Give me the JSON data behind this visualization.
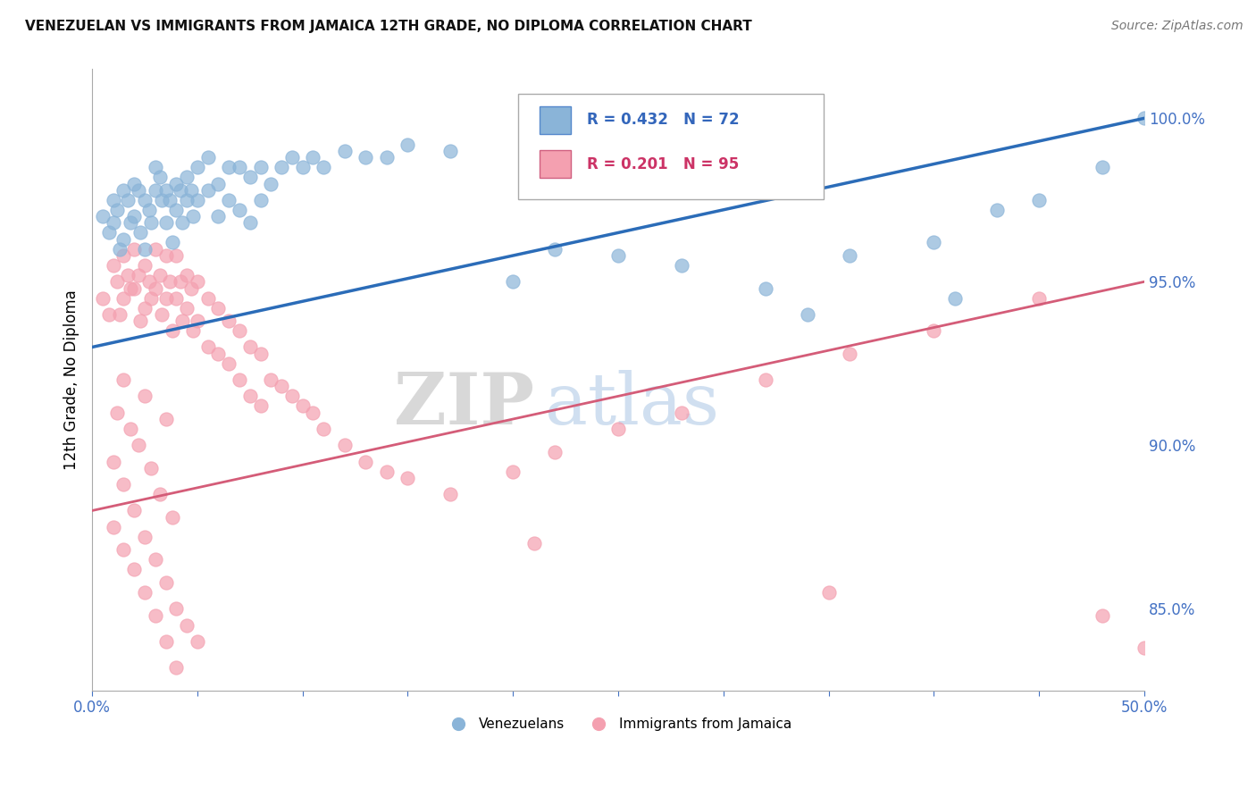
{
  "title": "VENEZUELAN VS IMMIGRANTS FROM JAMAICA 12TH GRADE, NO DIPLOMA CORRELATION CHART",
  "source": "Source: ZipAtlas.com",
  "ylabel": "12th Grade, No Diploma",
  "right_yticks": [
    0.85,
    0.9,
    0.95,
    1.0
  ],
  "right_yticklabels": [
    "85.0%",
    "90.0%",
    "95.0%",
    "100.0%"
  ],
  "xlim": [
    0.0,
    0.5
  ],
  "ylim": [
    0.825,
    1.015
  ],
  "venezuelan_color": "#8ab4d8",
  "jamaica_color": "#f4a0b0",
  "venezuelan_line_color": "#2b6cb8",
  "jamaica_line_color": "#d45c78",
  "R_venezuelan": 0.432,
  "N_venezuelan": 72,
  "R_jamaica": 0.201,
  "N_jamaica": 95,
  "watermark_zip": "ZIP",
  "watermark_atlas": "atlas",
  "background_color": "#ffffff",
  "grid_color": "#cccccc",
  "venezuelan_scatter": {
    "x": [
      0.005,
      0.008,
      0.01,
      0.01,
      0.012,
      0.013,
      0.015,
      0.015,
      0.017,
      0.018,
      0.02,
      0.02,
      0.022,
      0.023,
      0.025,
      0.025,
      0.027,
      0.028,
      0.03,
      0.03,
      0.032,
      0.033,
      0.035,
      0.035,
      0.037,
      0.038,
      0.04,
      0.04,
      0.042,
      0.043,
      0.045,
      0.045,
      0.047,
      0.048,
      0.05,
      0.05,
      0.055,
      0.055,
      0.06,
      0.06,
      0.065,
      0.065,
      0.07,
      0.07,
      0.075,
      0.075,
      0.08,
      0.08,
      0.085,
      0.09,
      0.095,
      0.1,
      0.105,
      0.11,
      0.12,
      0.13,
      0.14,
      0.15,
      0.17,
      0.2,
      0.22,
      0.25,
      0.28,
      0.32,
      0.36,
      0.4,
      0.43,
      0.45,
      0.48,
      0.5,
      0.34,
      0.41
    ],
    "y": [
      0.97,
      0.965,
      0.975,
      0.968,
      0.972,
      0.96,
      0.978,
      0.963,
      0.975,
      0.968,
      0.98,
      0.97,
      0.978,
      0.965,
      0.975,
      0.96,
      0.972,
      0.968,
      0.985,
      0.978,
      0.982,
      0.975,
      0.978,
      0.968,
      0.975,
      0.962,
      0.98,
      0.972,
      0.978,
      0.968,
      0.982,
      0.975,
      0.978,
      0.97,
      0.985,
      0.975,
      0.988,
      0.978,
      0.98,
      0.97,
      0.985,
      0.975,
      0.985,
      0.972,
      0.982,
      0.968,
      0.985,
      0.975,
      0.98,
      0.985,
      0.988,
      0.985,
      0.988,
      0.985,
      0.99,
      0.988,
      0.988,
      0.992,
      0.99,
      0.95,
      0.96,
      0.958,
      0.955,
      0.948,
      0.958,
      0.962,
      0.972,
      0.975,
      0.985,
      1.0,
      0.94,
      0.945
    ]
  },
  "jamaica_scatter": {
    "x": [
      0.005,
      0.008,
      0.01,
      0.012,
      0.013,
      0.015,
      0.015,
      0.017,
      0.018,
      0.02,
      0.02,
      0.022,
      0.023,
      0.025,
      0.025,
      0.027,
      0.028,
      0.03,
      0.03,
      0.032,
      0.033,
      0.035,
      0.035,
      0.037,
      0.038,
      0.04,
      0.04,
      0.042,
      0.043,
      0.045,
      0.045,
      0.047,
      0.048,
      0.05,
      0.05,
      0.055,
      0.055,
      0.06,
      0.06,
      0.065,
      0.065,
      0.07,
      0.07,
      0.075,
      0.075,
      0.08,
      0.08,
      0.085,
      0.09,
      0.095,
      0.1,
      0.105,
      0.11,
      0.12,
      0.13,
      0.14,
      0.15,
      0.17,
      0.2,
      0.22,
      0.25,
      0.28,
      0.32,
      0.36,
      0.4,
      0.45,
      0.01,
      0.015,
      0.02,
      0.025,
      0.03,
      0.035,
      0.04,
      0.045,
      0.05,
      0.01,
      0.015,
      0.02,
      0.025,
      0.03,
      0.035,
      0.04,
      0.012,
      0.018,
      0.022,
      0.028,
      0.032,
      0.038,
      0.015,
      0.025,
      0.035,
      0.21,
      0.35,
      0.48,
      0.5
    ],
    "y": [
      0.945,
      0.94,
      0.955,
      0.95,
      0.94,
      0.958,
      0.945,
      0.952,
      0.948,
      0.96,
      0.948,
      0.952,
      0.938,
      0.955,
      0.942,
      0.95,
      0.945,
      0.96,
      0.948,
      0.952,
      0.94,
      0.958,
      0.945,
      0.95,
      0.935,
      0.958,
      0.945,
      0.95,
      0.938,
      0.952,
      0.942,
      0.948,
      0.935,
      0.95,
      0.938,
      0.945,
      0.93,
      0.942,
      0.928,
      0.938,
      0.925,
      0.935,
      0.92,
      0.93,
      0.915,
      0.928,
      0.912,
      0.92,
      0.918,
      0.915,
      0.912,
      0.91,
      0.905,
      0.9,
      0.895,
      0.892,
      0.89,
      0.885,
      0.892,
      0.898,
      0.905,
      0.91,
      0.92,
      0.928,
      0.935,
      0.945,
      0.895,
      0.888,
      0.88,
      0.872,
      0.865,
      0.858,
      0.85,
      0.845,
      0.84,
      0.875,
      0.868,
      0.862,
      0.855,
      0.848,
      0.84,
      0.832,
      0.91,
      0.905,
      0.9,
      0.893,
      0.885,
      0.878,
      0.92,
      0.915,
      0.908,
      0.87,
      0.855,
      0.848,
      0.838
    ]
  }
}
